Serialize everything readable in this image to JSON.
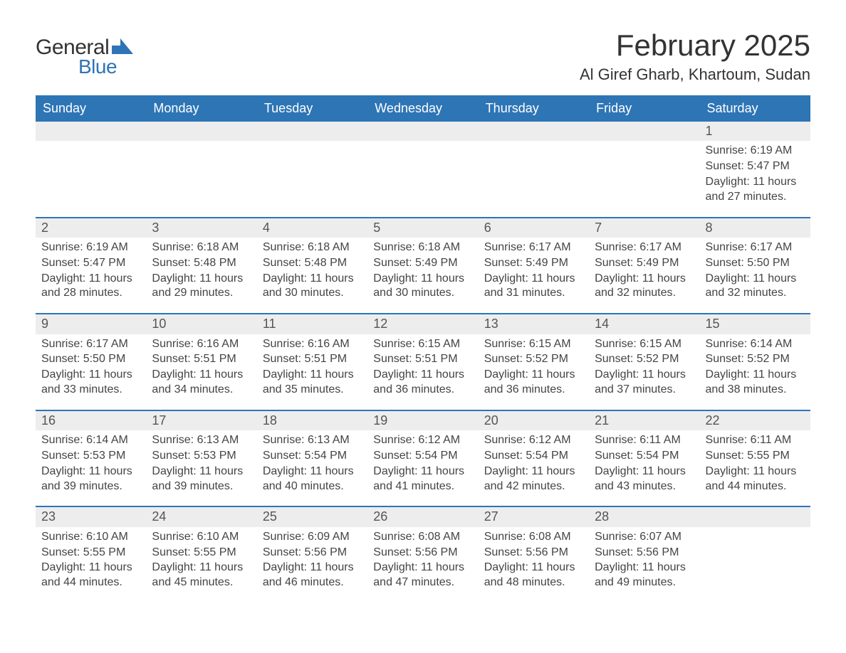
{
  "logo": {
    "text1": "General",
    "text2": "Blue"
  },
  "title": "February 2025",
  "location": "Al Giref Gharb, Khartoum, Sudan",
  "colors": {
    "header_bg": "#2e75b6",
    "header_text": "#ffffff",
    "date_row_bg": "#ededed",
    "week_border": "#2e75b6",
    "body_text": "#444444",
    "page_bg": "#ffffff"
  },
  "typography": {
    "title_fontsize": 42,
    "location_fontsize": 22,
    "header_fontsize": 18,
    "cell_fontsize": 16
  },
  "day_names": [
    "Sunday",
    "Monday",
    "Tuesday",
    "Wednesday",
    "Thursday",
    "Friday",
    "Saturday"
  ],
  "weeks": [
    [
      {
        "n": "",
        "sunrise": "",
        "sunset": "",
        "daylight": ""
      },
      {
        "n": "",
        "sunrise": "",
        "sunset": "",
        "daylight": ""
      },
      {
        "n": "",
        "sunrise": "",
        "sunset": "",
        "daylight": ""
      },
      {
        "n": "",
        "sunrise": "",
        "sunset": "",
        "daylight": ""
      },
      {
        "n": "",
        "sunrise": "",
        "sunset": "",
        "daylight": ""
      },
      {
        "n": "",
        "sunrise": "",
        "sunset": "",
        "daylight": ""
      },
      {
        "n": "1",
        "sunrise": "Sunrise: 6:19 AM",
        "sunset": "Sunset: 5:47 PM",
        "daylight": "Daylight: 11 hours and 27 minutes."
      }
    ],
    [
      {
        "n": "2",
        "sunrise": "Sunrise: 6:19 AM",
        "sunset": "Sunset: 5:47 PM",
        "daylight": "Daylight: 11 hours and 28 minutes."
      },
      {
        "n": "3",
        "sunrise": "Sunrise: 6:18 AM",
        "sunset": "Sunset: 5:48 PM",
        "daylight": "Daylight: 11 hours and 29 minutes."
      },
      {
        "n": "4",
        "sunrise": "Sunrise: 6:18 AM",
        "sunset": "Sunset: 5:48 PM",
        "daylight": "Daylight: 11 hours and 30 minutes."
      },
      {
        "n": "5",
        "sunrise": "Sunrise: 6:18 AM",
        "sunset": "Sunset: 5:49 PM",
        "daylight": "Daylight: 11 hours and 30 minutes."
      },
      {
        "n": "6",
        "sunrise": "Sunrise: 6:17 AM",
        "sunset": "Sunset: 5:49 PM",
        "daylight": "Daylight: 11 hours and 31 minutes."
      },
      {
        "n": "7",
        "sunrise": "Sunrise: 6:17 AM",
        "sunset": "Sunset: 5:49 PM",
        "daylight": "Daylight: 11 hours and 32 minutes."
      },
      {
        "n": "8",
        "sunrise": "Sunrise: 6:17 AM",
        "sunset": "Sunset: 5:50 PM",
        "daylight": "Daylight: 11 hours and 32 minutes."
      }
    ],
    [
      {
        "n": "9",
        "sunrise": "Sunrise: 6:17 AM",
        "sunset": "Sunset: 5:50 PM",
        "daylight": "Daylight: 11 hours and 33 minutes."
      },
      {
        "n": "10",
        "sunrise": "Sunrise: 6:16 AM",
        "sunset": "Sunset: 5:51 PM",
        "daylight": "Daylight: 11 hours and 34 minutes."
      },
      {
        "n": "11",
        "sunrise": "Sunrise: 6:16 AM",
        "sunset": "Sunset: 5:51 PM",
        "daylight": "Daylight: 11 hours and 35 minutes."
      },
      {
        "n": "12",
        "sunrise": "Sunrise: 6:15 AM",
        "sunset": "Sunset: 5:51 PM",
        "daylight": "Daylight: 11 hours and 36 minutes."
      },
      {
        "n": "13",
        "sunrise": "Sunrise: 6:15 AM",
        "sunset": "Sunset: 5:52 PM",
        "daylight": "Daylight: 11 hours and 36 minutes."
      },
      {
        "n": "14",
        "sunrise": "Sunrise: 6:15 AM",
        "sunset": "Sunset: 5:52 PM",
        "daylight": "Daylight: 11 hours and 37 minutes."
      },
      {
        "n": "15",
        "sunrise": "Sunrise: 6:14 AM",
        "sunset": "Sunset: 5:52 PM",
        "daylight": "Daylight: 11 hours and 38 minutes."
      }
    ],
    [
      {
        "n": "16",
        "sunrise": "Sunrise: 6:14 AM",
        "sunset": "Sunset: 5:53 PM",
        "daylight": "Daylight: 11 hours and 39 minutes."
      },
      {
        "n": "17",
        "sunrise": "Sunrise: 6:13 AM",
        "sunset": "Sunset: 5:53 PM",
        "daylight": "Daylight: 11 hours and 39 minutes."
      },
      {
        "n": "18",
        "sunrise": "Sunrise: 6:13 AM",
        "sunset": "Sunset: 5:54 PM",
        "daylight": "Daylight: 11 hours and 40 minutes."
      },
      {
        "n": "19",
        "sunrise": "Sunrise: 6:12 AM",
        "sunset": "Sunset: 5:54 PM",
        "daylight": "Daylight: 11 hours and 41 minutes."
      },
      {
        "n": "20",
        "sunrise": "Sunrise: 6:12 AM",
        "sunset": "Sunset: 5:54 PM",
        "daylight": "Daylight: 11 hours and 42 minutes."
      },
      {
        "n": "21",
        "sunrise": "Sunrise: 6:11 AM",
        "sunset": "Sunset: 5:54 PM",
        "daylight": "Daylight: 11 hours and 43 minutes."
      },
      {
        "n": "22",
        "sunrise": "Sunrise: 6:11 AM",
        "sunset": "Sunset: 5:55 PM",
        "daylight": "Daylight: 11 hours and 44 minutes."
      }
    ],
    [
      {
        "n": "23",
        "sunrise": "Sunrise: 6:10 AM",
        "sunset": "Sunset: 5:55 PM",
        "daylight": "Daylight: 11 hours and 44 minutes."
      },
      {
        "n": "24",
        "sunrise": "Sunrise: 6:10 AM",
        "sunset": "Sunset: 5:55 PM",
        "daylight": "Daylight: 11 hours and 45 minutes."
      },
      {
        "n": "25",
        "sunrise": "Sunrise: 6:09 AM",
        "sunset": "Sunset: 5:56 PM",
        "daylight": "Daylight: 11 hours and 46 minutes."
      },
      {
        "n": "26",
        "sunrise": "Sunrise: 6:08 AM",
        "sunset": "Sunset: 5:56 PM",
        "daylight": "Daylight: 11 hours and 47 minutes."
      },
      {
        "n": "27",
        "sunrise": "Sunrise: 6:08 AM",
        "sunset": "Sunset: 5:56 PM",
        "daylight": "Daylight: 11 hours and 48 minutes."
      },
      {
        "n": "28",
        "sunrise": "Sunrise: 6:07 AM",
        "sunset": "Sunset: 5:56 PM",
        "daylight": "Daylight: 11 hours and 49 minutes."
      },
      {
        "n": "",
        "sunrise": "",
        "sunset": "",
        "daylight": ""
      }
    ]
  ]
}
